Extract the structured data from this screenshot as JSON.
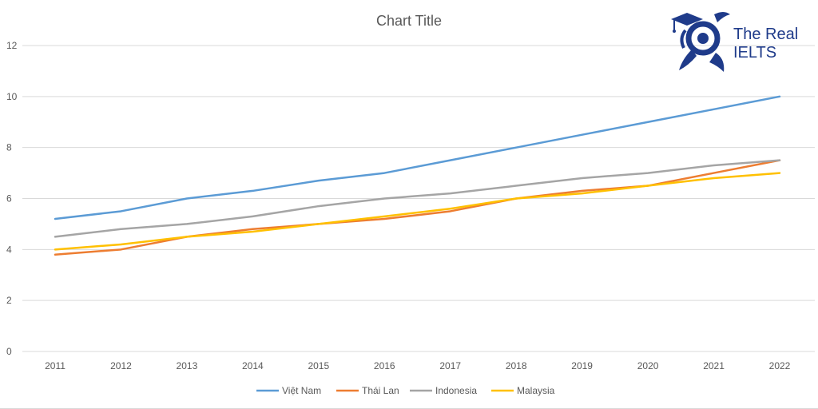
{
  "chart_data": {
    "type": "line",
    "title": "Chart Title",
    "xlabel": "",
    "ylabel": "",
    "ylim": [
      0,
      12
    ],
    "yticks": [
      0,
      2,
      4,
      6,
      8,
      10,
      12
    ],
    "grid": true,
    "legend_position": "bottom",
    "categories": [
      "2011",
      "2012",
      "2013",
      "2014",
      "2015",
      "2016",
      "2017",
      "2018",
      "2019",
      "2020",
      "2021",
      "2022"
    ],
    "series": [
      {
        "name": "Việt Nam",
        "color": "#5b9bd5",
        "values": [
          5.2,
          5.5,
          6.0,
          6.3,
          6.7,
          7.0,
          7.5,
          8.0,
          8.5,
          9.0,
          9.5,
          10.0
        ]
      },
      {
        "name": "Thái Lan",
        "color": "#ed7d31",
        "values": [
          3.8,
          4.0,
          4.5,
          4.8,
          5.0,
          5.2,
          5.5,
          6.0,
          6.3,
          6.5,
          7.0,
          7.5
        ]
      },
      {
        "name": "Indonesia",
        "color": "#a5a5a5",
        "values": [
          4.5,
          4.8,
          5.0,
          5.3,
          5.7,
          6.0,
          6.2,
          6.5,
          6.8,
          7.0,
          7.3,
          7.5
        ]
      },
      {
        "name": "Malaysia",
        "color": "#ffc000",
        "values": [
          4.0,
          4.2,
          4.5,
          4.7,
          5.0,
          5.3,
          5.6,
          6.0,
          6.2,
          6.5,
          6.8,
          7.0
        ]
      }
    ]
  },
  "logo": {
    "line1": "The Real",
    "line2": "IELTS",
    "color": "#1f3b8a"
  }
}
